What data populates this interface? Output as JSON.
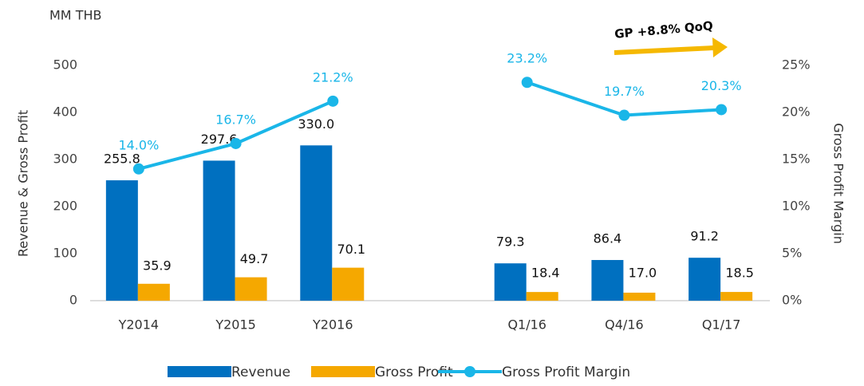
{
  "chart_data": {
    "type": "bar",
    "title": "MM THB",
    "y_label": "Revenue & Gross Profit",
    "y2_label": "Gross Profit Margin",
    "annotation": "GP +8.8% QoQ",
    "categories": [
      "Y2014",
      "Y2015",
      "Y2016",
      null,
      "Q1/16",
      "Q4/16",
      "Q1/17"
    ],
    "series": [
      {
        "name": "Revenue",
        "type": "bar",
        "color": "#0070c0",
        "values": [
          255.8,
          297.6,
          330.0,
          null,
          79.3,
          86.4,
          91.2
        ],
        "value_labels": [
          "255.8",
          "297.6",
          "330.0",
          null,
          "79.3",
          "86.4",
          "91.2"
        ]
      },
      {
        "name": "Gross Profit",
        "type": "bar",
        "color": "#f5a800",
        "values": [
          35.9,
          49.7,
          70.1,
          null,
          18.4,
          17.0,
          18.5
        ],
        "value_labels": [
          "35.9",
          "49.7",
          "70.1",
          null,
          "18.4",
          "17.0",
          "18.5"
        ]
      },
      {
        "name": "Gross Profit Margin",
        "type": "line",
        "axis": "y2",
        "color": "#1ab6e8",
        "values": [
          14.0,
          16.7,
          21.2,
          null,
          23.2,
          19.7,
          20.3
        ],
        "value_labels": [
          "14.0%",
          "16.7%",
          "21.2%",
          null,
          "23.2%",
          "19.7%",
          "20.3%"
        ]
      }
    ],
    "ylim": [
      0,
      500
    ],
    "yticks": [
      0,
      100,
      200,
      300,
      400,
      500
    ],
    "y2lim": [
      0,
      25
    ],
    "y2ticks": [
      {
        "value": 0,
        "label": "0%"
      },
      {
        "value": 5,
        "label": "5%"
      },
      {
        "value": 10,
        "label": "10%"
      },
      {
        "value": 15,
        "label": "15%"
      },
      {
        "value": 20,
        "label": "20%"
      },
      {
        "value": 25,
        "label": "25%"
      }
    ],
    "legend": "bottom"
  }
}
